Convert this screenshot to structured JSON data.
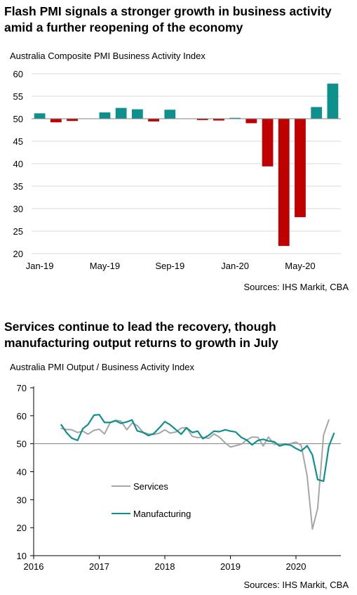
{
  "charts": [
    {
      "heading": "Flash PMI signals a stronger growth in business activity amid a further reopening of the economy",
      "subtitle": "Australia Composite PMI Business Activity Index",
      "source": "Sources: IHS Markit, CBA"
    },
    {
      "heading": "Services continue to lead the recovery, though manufacturing output returns to growth in July",
      "subtitle": "Australia PMI Output / Business Activity Index",
      "source": "Sources: IHS Markit, CBA"
    }
  ],
  "chart_data": [
    {
      "type": "bar",
      "title": "Australia Composite PMI Business Activity Index",
      "baseline": 50,
      "ylim": [
        20,
        60
      ],
      "yticks": [
        20,
        25,
        30,
        35,
        40,
        45,
        50,
        55,
        60
      ],
      "xtick_labels": [
        "Jan-19",
        "May-19",
        "Sep-19",
        "Jan-20",
        "May-20"
      ],
      "xtick_category_index": [
        0,
        4,
        8,
        12,
        16
      ],
      "categories": [
        "Jan-19",
        "Feb-19",
        "Mar-19",
        "Apr-19",
        "May-19",
        "Jun-19",
        "Jul-19",
        "Aug-19",
        "Sep-19",
        "Oct-19",
        "Nov-19",
        "Dec-19",
        "Jan-20",
        "Feb-20",
        "Mar-20",
        "Apr-20",
        "May-20",
        "Jun-20",
        "Jul-20"
      ],
      "values": [
        51.2,
        49.2,
        49.5,
        null,
        51.4,
        52.4,
        52.1,
        49.4,
        52.0,
        null,
        49.7,
        49.6,
        50.2,
        49.0,
        39.4,
        21.7,
        28.1,
        52.6,
        57.8
      ],
      "colors": {
        "positive": "#0e918c",
        "negative": "#c00000",
        "gridline": "#d9d9d9",
        "baseline": "#808080"
      },
      "grid": true
    },
    {
      "type": "line",
      "title": "Australia PMI Output / Business Activity Index",
      "ylim": [
        10,
        70
      ],
      "yticks": [
        10,
        20,
        30,
        40,
        50,
        60,
        70
      ],
      "xlim": [
        2016,
        2020.67
      ],
      "xticks": [
        "2016",
        "2017",
        "2018",
        "2019",
        "2020"
      ],
      "reference_line": 50,
      "grid": false,
      "legend": "middle-left",
      "series": [
        {
          "name": "Services",
          "color": "#a6a6a6",
          "x": [
            2016.42,
            2016.5,
            2016.58,
            2016.67,
            2016.75,
            2016.83,
            2016.92,
            2017.0,
            2017.08,
            2017.17,
            2017.25,
            2017.33,
            2017.42,
            2017.5,
            2017.58,
            2017.67,
            2017.75,
            2017.83,
            2017.92,
            2018.0,
            2018.08,
            2018.17,
            2018.25,
            2018.33,
            2018.42,
            2018.5,
            2018.58,
            2018.67,
            2018.75,
            2018.83,
            2018.92,
            2019.0,
            2019.08,
            2019.17,
            2019.25,
            2019.33,
            2019.42,
            2019.5,
            2019.58,
            2019.67,
            2019.75,
            2019.83,
            2019.92,
            2020.0,
            2020.08,
            2020.17,
            2020.25,
            2020.33,
            2020.42,
            2020.5,
            2020.58
          ],
          "y": [
            55.5,
            55.1,
            55.0,
            54.0,
            54.5,
            53.4,
            54.8,
            55.2,
            53.5,
            57.7,
            58.4,
            58.1,
            55.0,
            57.4,
            56.5,
            54.1,
            53.5,
            53.3,
            53.8,
            55.0,
            53.8,
            54.2,
            55.6,
            55.8,
            52.6,
            52.2,
            52.3,
            51.9,
            53.5,
            52.4,
            50.3,
            48.8,
            49.3,
            49.9,
            51.4,
            52.4,
            52.3,
            49.2,
            52.4,
            49.8,
            49.9,
            49.6,
            50.1,
            50.6,
            49.4,
            38.5,
            19.5,
            26.9,
            53.1,
            58.5,
            null
          ]
        },
        {
          "name": "Manufacturing",
          "color": "#0e918c",
          "x": [
            2016.42,
            2016.5,
            2016.58,
            2016.67,
            2016.75,
            2016.83,
            2016.92,
            2017.0,
            2017.08,
            2017.17,
            2017.25,
            2017.33,
            2017.42,
            2017.5,
            2017.58,
            2017.67,
            2017.75,
            2017.83,
            2017.92,
            2018.0,
            2018.08,
            2018.17,
            2018.25,
            2018.33,
            2018.42,
            2018.5,
            2018.58,
            2018.67,
            2018.75,
            2018.83,
            2018.92,
            2019.0,
            2019.08,
            2019.17,
            2019.25,
            2019.33,
            2019.42,
            2019.5,
            2019.58,
            2019.67,
            2019.75,
            2019.83,
            2019.92,
            2020.0,
            2020.08,
            2020.17,
            2020.25,
            2020.33,
            2020.42,
            2020.5,
            2020.58
          ],
          "y": [
            56.8,
            54.0,
            52.0,
            51.2,
            55.4,
            56.9,
            60.2,
            60.4,
            57.6,
            57.6,
            58.2,
            57.3,
            57.8,
            58.5,
            54.6,
            54.0,
            52.9,
            53.6,
            55.8,
            57.9,
            56.8,
            55.0,
            53.4,
            55.7,
            54.0,
            54.5,
            51.8,
            53.0,
            54.5,
            54.3,
            55.0,
            54.5,
            54.2,
            52.2,
            51.3,
            49.6,
            51.2,
            51.6,
            51.0,
            50.7,
            49.2,
            49.8,
            49.5,
            48.3,
            47.4,
            49.3,
            46.0,
            37.2,
            36.6,
            49.0,
            53.7
          ]
        }
      ]
    }
  ]
}
